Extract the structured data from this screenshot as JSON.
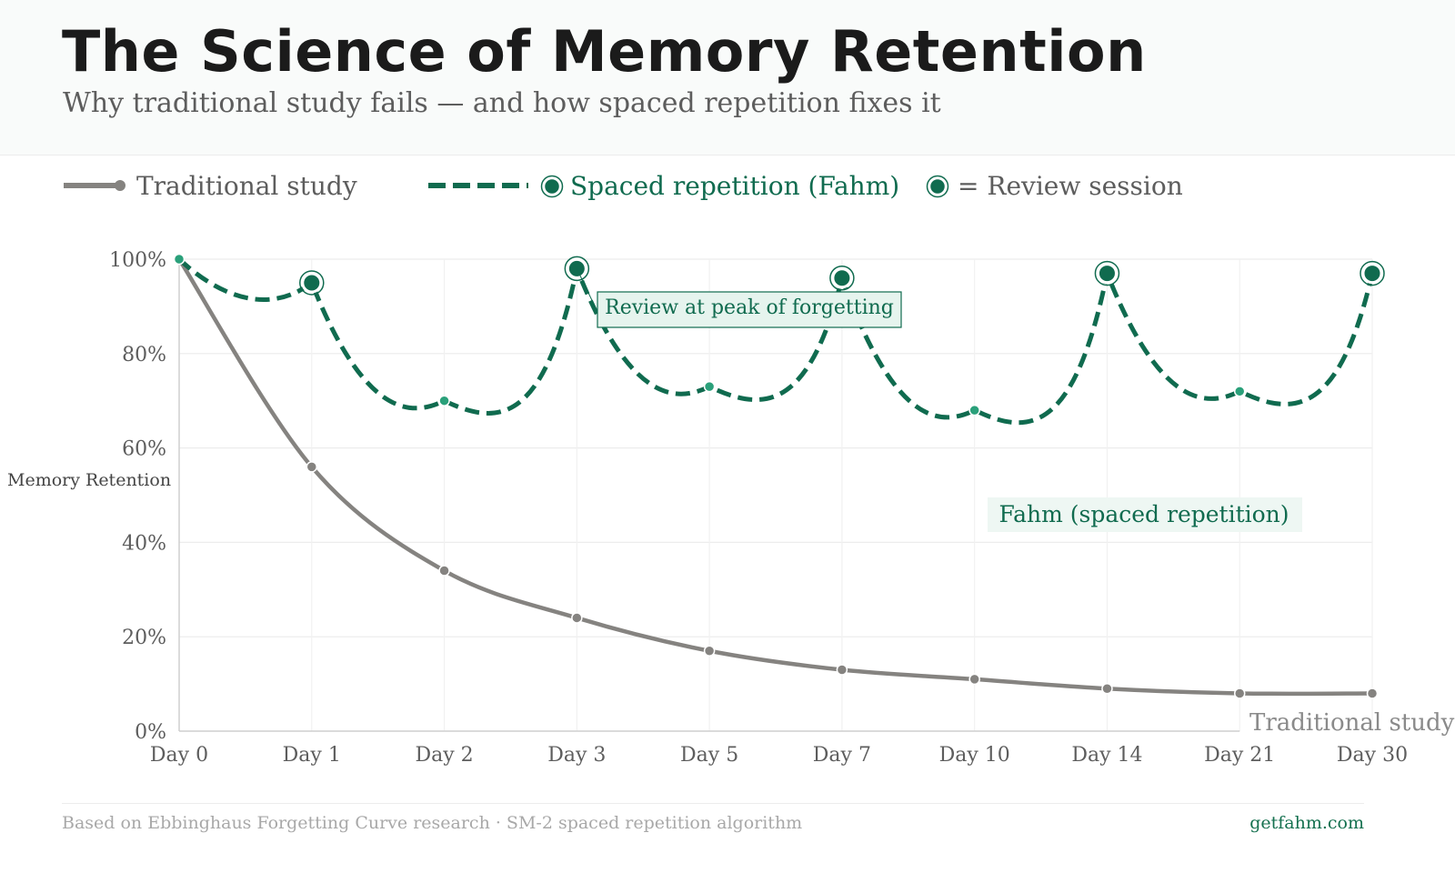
{
  "header": {
    "title": "The Science of Memory Retention",
    "subtitle": "Why traditional study fails — and how spaced repetition fixes it"
  },
  "footer": {
    "source": "Based on Ebbinghaus Forgetting Curve research · SM-2 spaced repetition algorithm",
    "brand": "getfahm.com"
  },
  "colors": {
    "traditional": "#858380",
    "spaced": "#106b4f",
    "spaced_point": "#2aa07a",
    "annotation_bg": "#e6f4ee",
    "text_dark": "#1b1b1b",
    "text_muted": "#5d5d5d"
  },
  "legend": [
    {
      "label": "Traditional study",
      "style": "solid-line-dot"
    },
    {
      "label": "Spaced repetition (Fahm)",
      "style": "dashed-line-ring"
    },
    {
      "label": "= Review session",
      "style": "ring"
    }
  ],
  "chart_data": {
    "type": "line",
    "categories": [
      "Day 0",
      "Day 1",
      "Day 2",
      "Day 3",
      "Day 5",
      "Day 7",
      "Day 10",
      "Day 14",
      "Day 21",
      "Day 30"
    ],
    "ylabel": "Memory Retention",
    "ylim": [
      0,
      100
    ],
    "yticks": [
      "0%",
      "20%",
      "40%",
      "60%",
      "80%",
      "100%"
    ],
    "grid": true,
    "series": [
      {
        "name": "Traditional study",
        "values": [
          100,
          56,
          34,
          24,
          17,
          13,
          11,
          9,
          8,
          8
        ],
        "line_style": "solid"
      },
      {
        "name": "Spaced repetition (Fahm)",
        "values": [
          100,
          95,
          70,
          98,
          73,
          96,
          68,
          97,
          72,
          97
        ],
        "line_style": "dashed",
        "review_sessions": [
          "Day 1",
          "Day 3",
          "Day 7",
          "Day 14",
          "Day 30"
        ]
      }
    ],
    "annotations": [
      {
        "text": "Review at peak of forgetting",
        "points_to": "Day 3"
      },
      {
        "text": "Fahm (spaced repetition)",
        "series": "Spaced repetition (Fahm)"
      },
      {
        "text": "Traditional study",
        "series": "Traditional study"
      }
    ]
  }
}
